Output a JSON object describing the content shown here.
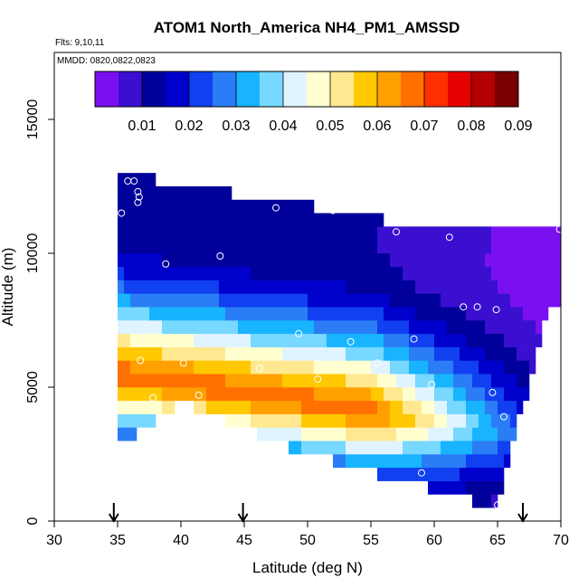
{
  "chart_data": {
    "type": "heatmap",
    "title": "ATOM1 North_America NH4_PM1_AMSSD",
    "subtitle_flights": "Flts: 9,10,11",
    "subtitle_dates": "MMDD: 0820,0822,0823",
    "xlabel": "Latitude (deg N)",
    "ylabel": "Altitude (m)",
    "xlim": [
      30,
      70
    ],
    "ylim": [
      0,
      17500
    ],
    "x_ticks": [
      "30",
      "35",
      "40",
      "45",
      "50",
      "55",
      "60",
      "65",
      "70"
    ],
    "y_ticks": [
      "0",
      "5000",
      "10000",
      "15000"
    ],
    "colorbar": {
      "range": [
        0,
        0.09
      ],
      "tick_labels": [
        "0.01",
        "0.02",
        "0.03",
        "0.04",
        "0.05",
        "0.06",
        "0.07",
        "0.08",
        "0.09"
      ],
      "colors": [
        "#7a10f0",
        "#3a0fd0",
        "#00009a",
        "#0000cc",
        "#1040f0",
        "#2a7df5",
        "#18b4ff",
        "#78d8ff",
        "#e0f4ff",
        "#ffffd0",
        "#ffe890",
        "#ffc800",
        "#ffa000",
        "#ff7000",
        "#ff3000",
        "#e60000",
        "#b40000",
        "#780000"
      ]
    },
    "columns": [
      {
        "lat": 35.5,
        "alt_min": 3000,
        "alt_max": 13000
      },
      {
        "lat": 40,
        "alt_min": 4500,
        "alt_max": 12500
      },
      {
        "lat": 45,
        "alt_min": 3500,
        "alt_max": 12200
      },
      {
        "lat": 50,
        "alt_min": 2500,
        "alt_max": 11800
      },
      {
        "lat": 55,
        "alt_min": 1800,
        "alt_max": 11300
      },
      {
        "lat": 60,
        "alt_min": 1200,
        "alt_max": 11000
      },
      {
        "lat": 65,
        "alt_min": 500,
        "alt_max": 11000
      },
      {
        "lat": 69,
        "alt_min": 8000,
        "alt_max": 11000
      }
    ],
    "profile": [
      {
        "alt": 500,
        "value": 0.004
      },
      {
        "alt": 2000,
        "value": 0.01
      },
      {
        "alt": 3500,
        "value": 0.03
      },
      {
        "alt": 4500,
        "value": 0.05
      },
      {
        "alt": 5500,
        "value": 0.07
      },
      {
        "alt": 6500,
        "value": 0.055
      },
      {
        "alt": 7500,
        "value": 0.04
      },
      {
        "alt": 8500,
        "value": 0.028
      },
      {
        "alt": 9500,
        "value": 0.018
      },
      {
        "alt": 10500,
        "value": 0.012
      },
      {
        "alt": 12000,
        "value": 0.01
      },
      {
        "alt": 13000,
        "value": 0.011
      }
    ],
    "samples": [
      {
        "lat": 35.8,
        "alt": 12700
      },
      {
        "lat": 36.3,
        "alt": 12700
      },
      {
        "lat": 36.6,
        "alt": 12300
      },
      {
        "lat": 36.7,
        "alt": 12100
      },
      {
        "lat": 36.6,
        "alt": 11900
      },
      {
        "lat": 35.3,
        "alt": 11500
      },
      {
        "lat": 47.5,
        "alt": 11700
      },
      {
        "lat": 52.0,
        "alt": 11600
      },
      {
        "lat": 57.0,
        "alt": 10800
      },
      {
        "lat": 61.2,
        "alt": 10600
      },
      {
        "lat": 69.9,
        "alt": 10900
      },
      {
        "lat": 43.1,
        "alt": 9900
      },
      {
        "lat": 38.8,
        "alt": 9600
      },
      {
        "lat": 62.3,
        "alt": 8000
      },
      {
        "lat": 63.4,
        "alt": 8000
      },
      {
        "lat": 64.9,
        "alt": 7900
      },
      {
        "lat": 34.8,
        "alt": 7200
      },
      {
        "lat": 49.3,
        "alt": 7000
      },
      {
        "lat": 53.4,
        "alt": 6700
      },
      {
        "lat": 58.4,
        "alt": 6800
      },
      {
        "lat": 36.8,
        "alt": 6000
      },
      {
        "lat": 40.2,
        "alt": 5900
      },
      {
        "lat": 46.2,
        "alt": 5700
      },
      {
        "lat": 55.5,
        "alt": 5900
      },
      {
        "lat": 50.8,
        "alt": 5300
      },
      {
        "lat": 59.8,
        "alt": 5100
      },
      {
        "lat": 37.8,
        "alt": 4600
      },
      {
        "lat": 41.4,
        "alt": 4700
      },
      {
        "lat": 64.6,
        "alt": 4800
      },
      {
        "lat": 65.5,
        "alt": 3900
      },
      {
        "lat": 59.0,
        "alt": 1800
      },
      {
        "lat": 65.0,
        "alt": 600
      }
    ],
    "marker_latitudes": [
      34.7,
      44.9,
      67.0
    ],
    "grid": false,
    "legend": "colorbar top"
  }
}
